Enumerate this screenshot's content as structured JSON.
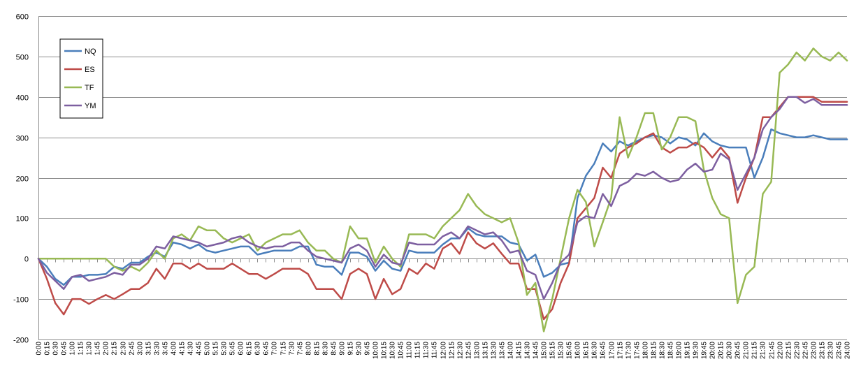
{
  "chart_data": {
    "type": "line",
    "title": "",
    "xlabel": "",
    "ylabel": "",
    "ylim": [
      -200,
      600
    ],
    "yticks": [
      -200,
      -100,
      0,
      100,
      200,
      300,
      400,
      500,
      600
    ],
    "grid": "horizontal",
    "legend": "top-left",
    "categories": [
      "0:00",
      "0:15",
      "0:30",
      "0:45",
      "1:00",
      "1:15",
      "1:30",
      "1:45",
      "2:00",
      "2:15",
      "2:30",
      "2:45",
      "3:00",
      "3:15",
      "3:30",
      "3:45",
      "4:00",
      "4:15",
      "4:30",
      "4:45",
      "5:00",
      "5:15",
      "5:30",
      "5:45",
      "6:00",
      "6:15",
      "6:30",
      "6:45",
      "7:00",
      "7:15",
      "7:30",
      "7:45",
      "8:00",
      "8:15",
      "8:30",
      "8:45",
      "9:00",
      "9:15",
      "9:30",
      "9:45",
      "10:00",
      "10:15",
      "10:30",
      "10:45",
      "11:00",
      "11:15",
      "11:30",
      "11:45",
      "12:00",
      "12:15",
      "12:30",
      "12:45",
      "13:00",
      "13:15",
      "13:30",
      "13:45",
      "14:00",
      "14:15",
      "14:30",
      "14:45",
      "15:00",
      "15:15",
      "15:30",
      "15:45",
      "16:00",
      "16:15",
      "16:30",
      "16:45",
      "17:00",
      "17:15",
      "17:30",
      "17:45",
      "18:00",
      "18:15",
      "18:30",
      "18:45",
      "19:00",
      "19:15",
      "19:30",
      "19:45",
      "20:00",
      "20:15",
      "20:30",
      "20:45",
      "21:00",
      "21:15",
      "21:30",
      "21:45",
      "22:00",
      "22:15",
      "22:30",
      "22:45",
      "23:00",
      "23:15",
      "23:30",
      "23:45",
      "24:00"
    ],
    "series": [
      {
        "name": "NQ",
        "color": "#4A7EBB",
        "values": [
          0,
          -20,
          -50,
          -65,
          -45,
          -45,
          -40,
          -40,
          -38,
          -20,
          -25,
          -10,
          -10,
          5,
          15,
          5,
          40,
          35,
          25,
          35,
          20,
          15,
          20,
          25,
          30,
          30,
          10,
          15,
          20,
          20,
          20,
          30,
          30,
          -15,
          -20,
          -20,
          -40,
          15,
          15,
          5,
          -30,
          -5,
          -25,
          -30,
          20,
          15,
          15,
          15,
          35,
          50,
          50,
          75,
          60,
          55,
          55,
          55,
          40,
          35,
          -5,
          10,
          -45,
          -35,
          -15,
          -10,
          150,
          205,
          235,
          285,
          265,
          290,
          280,
          290,
          300,
          305,
          300,
          285,
          300,
          295,
          280,
          310,
          290,
          280,
          275,
          275,
          275,
          200,
          250,
          320,
          310,
          305,
          300,
          300,
          305,
          300,
          295,
          295,
          295
        ]
      },
      {
        "name": "ES",
        "color": "#BE4B48",
        "values": [
          0,
          -50,
          -110,
          -138,
          -100,
          -100,
          -112,
          -100,
          -90,
          -100,
          -88,
          -75,
          -75,
          -60,
          -25,
          -50,
          -12,
          -12,
          -25,
          -12,
          -25,
          -25,
          -25,
          -12,
          -25,
          -38,
          -38,
          -50,
          -38,
          -25,
          -25,
          -25,
          -38,
          -75,
          -75,
          -75,
          -100,
          -38,
          -25,
          -38,
          -100,
          -50,
          -88,
          -75,
          -25,
          -38,
          -12,
          -25,
          25,
          38,
          12,
          65,
          38,
          25,
          38,
          12,
          -12,
          -12,
          -75,
          -75,
          -150,
          -125,
          -60,
          -12,
          100,
          125,
          150,
          225,
          200,
          260,
          275,
          285,
          300,
          310,
          275,
          262,
          275,
          275,
          287,
          275,
          250,
          275,
          250,
          138,
          200,
          250,
          350,
          350,
          375,
          400,
          400,
          400,
          400,
          388,
          388,
          388,
          388
        ]
      },
      {
        "name": "TF",
        "color": "#98B954",
        "values": [
          0,
          0,
          0,
          0,
          0,
          0,
          0,
          0,
          0,
          -20,
          -30,
          -20,
          -30,
          -10,
          20,
          0,
          50,
          60,
          45,
          80,
          70,
          70,
          50,
          40,
          50,
          60,
          20,
          40,
          50,
          60,
          60,
          70,
          40,
          20,
          20,
          0,
          -10,
          80,
          50,
          50,
          -10,
          30,
          0,
          -20,
          60,
          60,
          60,
          50,
          80,
          100,
          120,
          160,
          130,
          110,
          100,
          90,
          100,
          40,
          -90,
          -60,
          -180,
          -100,
          0,
          100,
          170,
          140,
          30,
          90,
          150,
          350,
          250,
          300,
          360,
          360,
          270,
          300,
          350,
          350,
          340,
          220,
          150,
          110,
          100,
          -110,
          -40,
          -20,
          160,
          190,
          460,
          480,
          510,
          490,
          520,
          500,
          490,
          510,
          490
        ]
      },
      {
        "name": "YM",
        "color": "#7D5FA0",
        "values": [
          0,
          -35,
          -55,
          -75,
          -45,
          -40,
          -55,
          -50,
          -45,
          -35,
          -40,
          -15,
          -15,
          0,
          30,
          25,
          55,
          50,
          45,
          40,
          30,
          35,
          40,
          50,
          55,
          40,
          30,
          25,
          30,
          30,
          40,
          40,
          20,
          5,
          0,
          -5,
          -10,
          25,
          35,
          20,
          -20,
          10,
          -10,
          -15,
          40,
          35,
          35,
          35,
          55,
          65,
          50,
          80,
          70,
          60,
          65,
          45,
          15,
          20,
          -30,
          -40,
          -100,
          -60,
          -10,
          10,
          90,
          105,
          100,
          160,
          130,
          180,
          190,
          210,
          205,
          215,
          200,
          190,
          195,
          220,
          235,
          215,
          220,
          260,
          245,
          170,
          210,
          250,
          320,
          350,
          370,
          400,
          400,
          385,
          395,
          380,
          380,
          380,
          380
        ]
      }
    ]
  }
}
